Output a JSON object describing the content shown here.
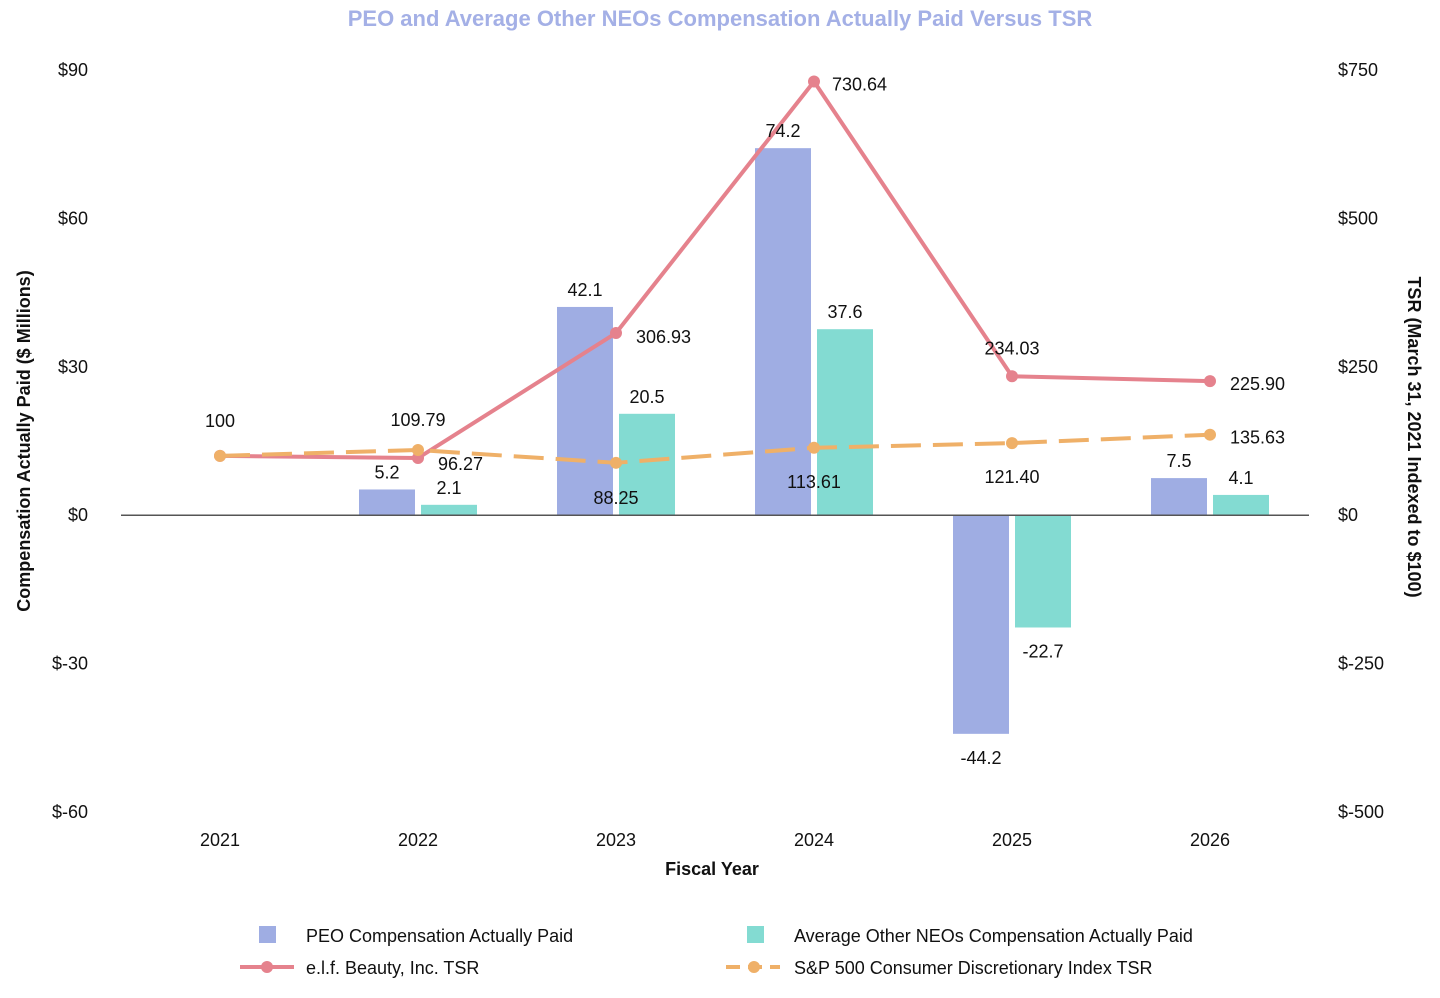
{
  "colors": {
    "title": "#a4b0e6",
    "peo": "#9fade3",
    "neo": "#83dbd2",
    "elf": "#e5828d",
    "sp": "#efb068",
    "zero_line": "#555555"
  },
  "chart_data": {
    "type": "bar",
    "title": "PEO and Average Other NEOs Compensation Actually Paid Versus TSR",
    "xlabel": "Fiscal Year",
    "ylabel_left": "Compensation Actually Paid ($ Millions)",
    "ylabel_right": "TSR (March 31, 2021 Indexed to $100)",
    "categories": [
      "2021",
      "2022",
      "2023",
      "2024",
      "2025",
      "2026"
    ],
    "ylim_left": [
      -60,
      90
    ],
    "ylim_right": [
      -500,
      750
    ],
    "left_ticks": [
      90,
      60,
      30,
      0,
      -30,
      -60
    ],
    "left_tick_labels": [
      "$90",
      "$60",
      "$30",
      "$0",
      "$-30",
      "$-60"
    ],
    "right_ticks": [
      750,
      500,
      250,
      0,
      -250,
      -500
    ],
    "right_tick_labels": [
      "$750",
      "$500",
      "$250",
      "$0",
      "$-250",
      "$-500"
    ],
    "grid": false,
    "legend_position": "bottom",
    "series": [
      {
        "name": "PEO Compensation Actually Paid",
        "kind": "bar",
        "axis": "left",
        "values": [
          null,
          5.2,
          42.1,
          74.2,
          -44.2,
          7.5
        ],
        "labels": [
          "",
          "5.2",
          "42.1",
          "74.2",
          "-44.2",
          "7.5"
        ]
      },
      {
        "name": "Average Other NEOs Compensation Actually Paid",
        "kind": "bar",
        "axis": "left",
        "values": [
          null,
          2.1,
          20.5,
          37.6,
          -22.7,
          4.1
        ],
        "labels": [
          "",
          "2.1",
          "20.5",
          "37.6",
          "-22.7",
          "4.1"
        ]
      },
      {
        "name": "e.l.f. Beauty, Inc. TSR",
        "kind": "line",
        "axis": "right",
        "values": [
          100,
          96.27,
          306.93,
          730.64,
          234.03,
          225.9
        ],
        "labels": [
          "100",
          "96.27",
          "306.93",
          "730.64",
          "234.03",
          "225.90"
        ]
      },
      {
        "name": "S&P 500 Consumer Discretionary Index TSR",
        "kind": "line",
        "dashed": true,
        "axis": "right",
        "values": [
          100,
          109.79,
          88.25,
          113.61,
          121.4,
          135.63
        ],
        "labels": [
          "",
          "109.79",
          "88.25",
          "113.61",
          "121.40",
          "135.63"
        ]
      }
    ]
  }
}
